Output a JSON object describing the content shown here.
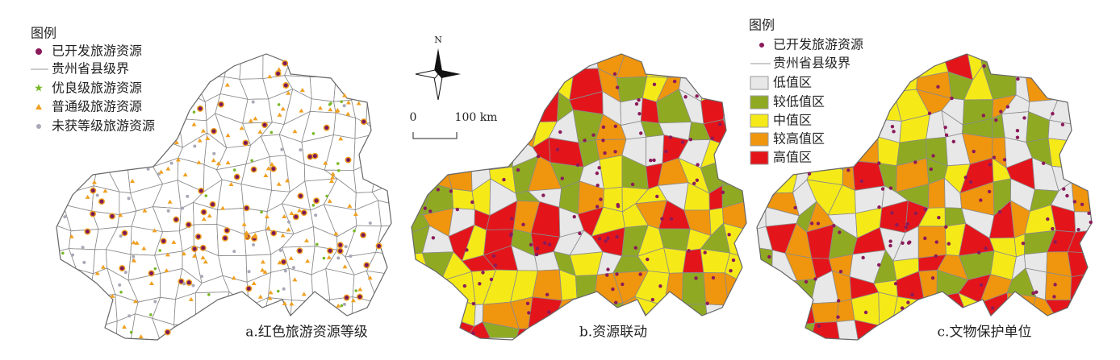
{
  "legend_a": {
    "title": "图例",
    "items": [
      "已开发旅游资源",
      "贵州省县级界",
      "优良级旅游资源",
      "普通级旅游资源",
      "未获等级旅游资源"
    ]
  },
  "compass": {
    "north": "N"
  },
  "scale_bar": {
    "start": "0",
    "end": "100 km"
  },
  "legend_c": {
    "title": "图例",
    "items": [
      "已开发旅游资源",
      "贵州省县级界",
      "低值区",
      "较低值区",
      "中值区",
      "较高值区",
      "高值区"
    ]
  },
  "panels": [
    {
      "label": "a.红色旅游资源等级"
    },
    {
      "label": "b.资源联动"
    },
    {
      "label": "c.文物保护单位"
    }
  ]
}
